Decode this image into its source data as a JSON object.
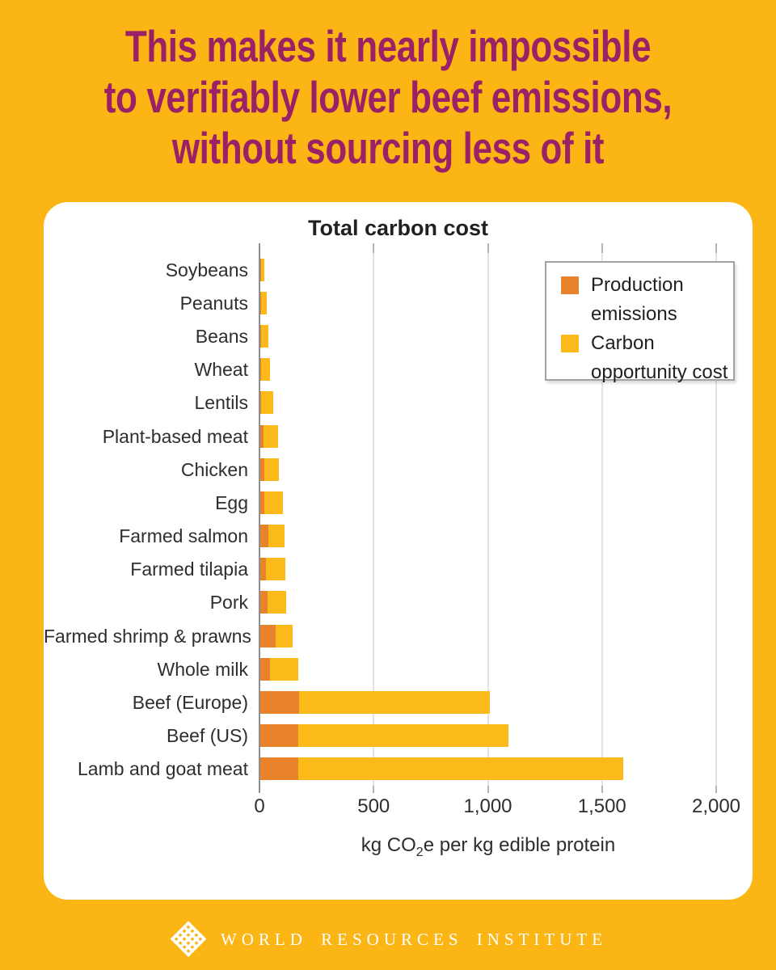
{
  "poster": {
    "title_lines": [
      "This makes it nearly impossible",
      "to verifiably lower beef emissions,",
      "without sourcing less of it"
    ],
    "footer_brand": "WORLD RESOURCES INSTITUTE"
  },
  "colors": {
    "background": "#FBB616",
    "card": "#FFFFFF",
    "title_text": "#9B2167",
    "production": "#E8822B",
    "opportunity": "#FCB91A",
    "gridline": "#E3E3E3",
    "axis": "#8E8E8E",
    "footer_text": "#FFFFFF"
  },
  "chart_data": {
    "type": "bar",
    "orientation": "horizontal",
    "stacked": true,
    "title": "Total carbon cost",
    "xlabel": "kg CO₂e per kg edible protein",
    "xlabel_parts": {
      "pre": "kg CO",
      "sub": "2",
      "post": "e per kg edible protein"
    },
    "xlim": [
      0,
      2000
    ],
    "xticks": [
      0,
      500,
      1000,
      1500,
      2000
    ],
    "xtick_labels": [
      "0",
      "500",
      "1,000",
      "1,500",
      "2,000"
    ],
    "grid": true,
    "legend_position": "top-right",
    "categories": [
      "Soybeans",
      "Peanuts",
      "Beans",
      "Wheat",
      "Lentils",
      "Plant-based meat",
      "Chicken",
      "Egg",
      "Farmed salmon",
      "Farmed tilapia",
      "Pork",
      "Farmed shrimp & prawns",
      "Whole milk",
      "Beef (Europe)",
      "Beef (US)",
      "Lamb and goat meat"
    ],
    "series": [
      {
        "name": "Production emissions",
        "color": "#E8822B",
        "values": [
          4,
          4,
          5,
          5,
          5,
          14,
          16,
          19,
          34,
          26,
          33,
          69,
          43,
          169,
          167,
          167
        ]
      },
      {
        "name": "Carbon opportunity cost",
        "color": "#FCB91A",
        "values": [
          13,
          25,
          30,
          37,
          51,
          64,
          66,
          79,
          73,
          83,
          79,
          73,
          122,
          835,
          919,
          1423
        ]
      }
    ],
    "totals": [
      17,
      29,
      35,
      42,
      56,
      78,
      82,
      98,
      107,
      109,
      112,
      142,
      165,
      1004,
      1086,
      1590
    ]
  }
}
